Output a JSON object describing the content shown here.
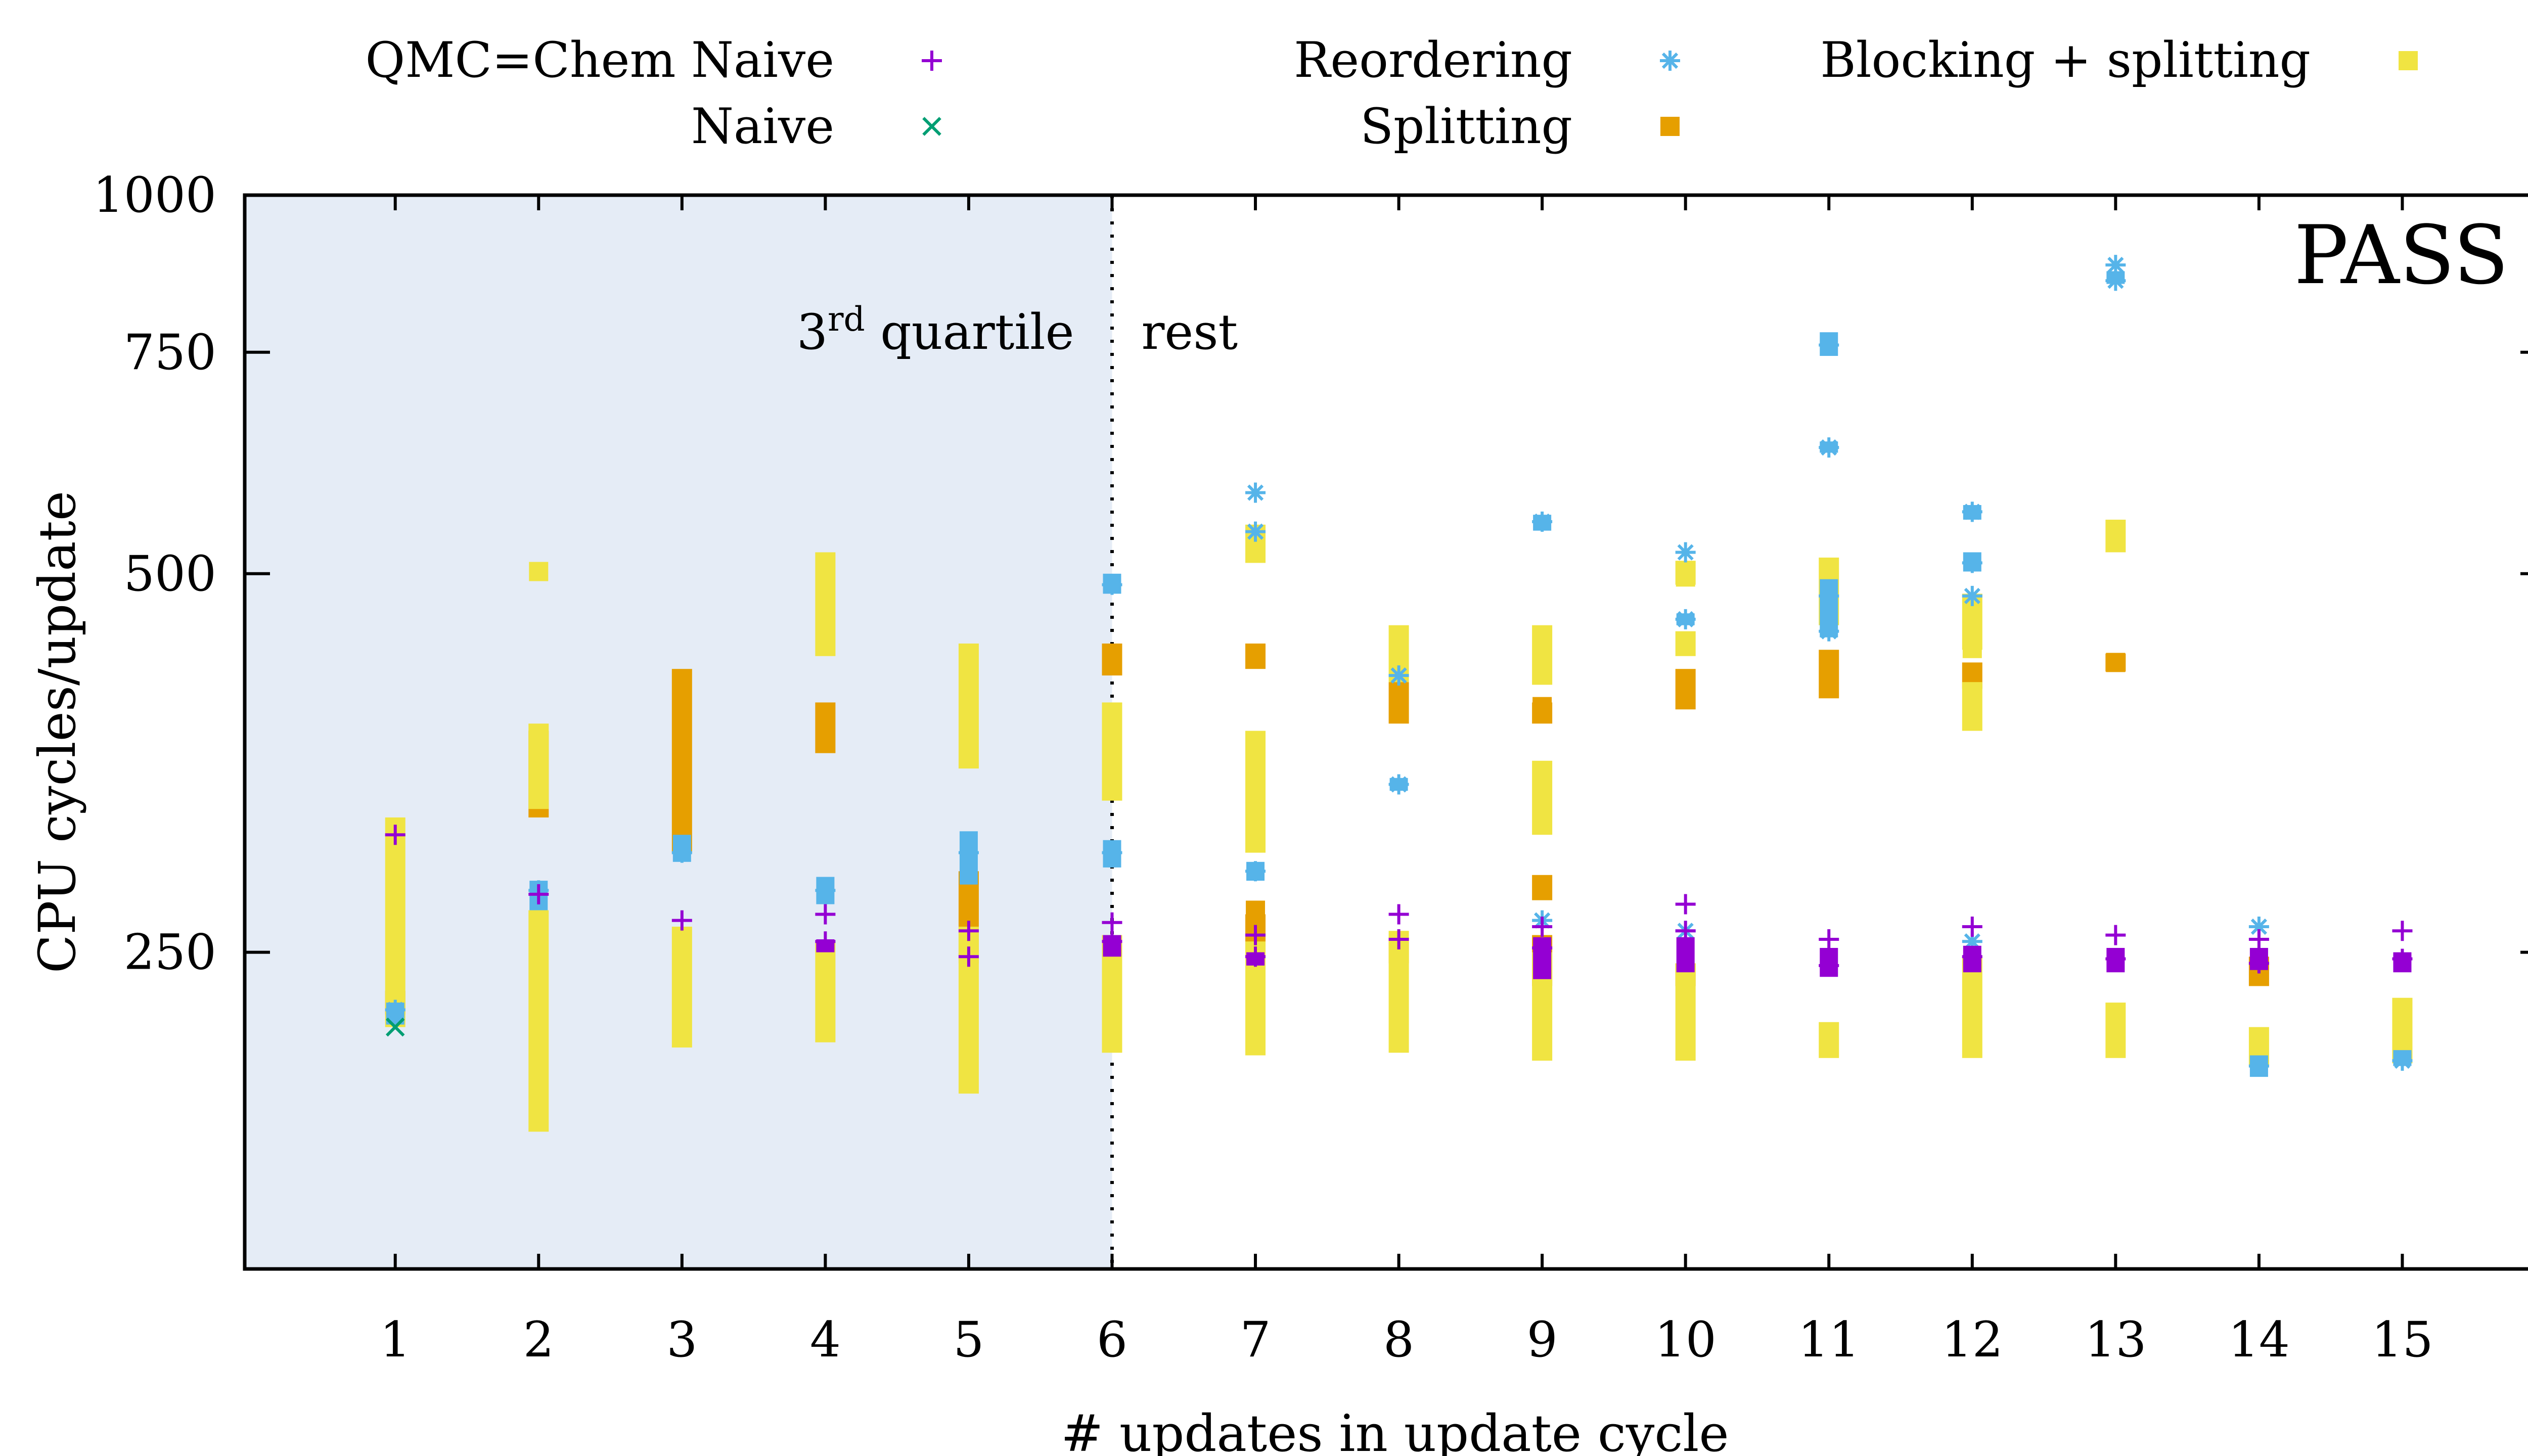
{
  "chart_data": {
    "type": "scatter",
    "title": "",
    "panel_label": "PASS",
    "xlabel": "# updates in update cycle",
    "ylabel": "CPU cycles/update",
    "y_scale": "log",
    "ylim": [
      140,
      1000
    ],
    "xlim": [
      -0.05,
      16
    ],
    "x_ticks": [
      "1",
      "2",
      "3",
      "4",
      "5",
      "6",
      "7",
      "8",
      "9",
      "10",
      "11",
      "12",
      "13",
      "14",
      "15"
    ],
    "y_ticks": [
      "250",
      "500",
      "750",
      "1000"
    ],
    "legend_position": "top, outside plot",
    "region": {
      "x_from": -0.05,
      "x_to": 6,
      "left_label_main": "3",
      "left_label_sup": "rd",
      "left_label_rest": " quartile",
      "right_label": "rest",
      "fill": "#e5ecf6"
    },
    "series": [
      {
        "name": "QMC=Chem Naive",
        "marker": "plus",
        "color": "#9400d3",
        "points": [
          [
            1,
            310
          ],
          [
            2,
            278
          ],
          [
            3,
            265
          ],
          [
            4,
            268
          ],
          [
            4,
            255
          ],
          [
            5,
            260
          ],
          [
            5,
            248
          ],
          [
            6,
            264
          ],
          [
            6,
            255
          ],
          [
            7,
            258
          ],
          [
            7,
            248
          ],
          [
            8,
            268
          ],
          [
            8,
            256
          ],
          [
            9,
            262
          ],
          [
            9,
            252
          ],
          [
            10,
            273
          ],
          [
            10,
            260
          ],
          [
            11,
            256
          ],
          [
            11,
            244
          ],
          [
            12,
            262
          ],
          [
            12,
            248
          ],
          [
            13,
            258
          ],
          [
            13,
            247
          ],
          [
            14,
            256
          ],
          [
            14,
            245
          ],
          [
            15,
            260
          ],
          [
            15,
            247
          ]
        ],
        "bands": [
          [
            4,
            250,
            256
          ],
          [
            6,
            248,
            258
          ],
          [
            7,
            244,
            250
          ],
          [
            9,
            238,
            257
          ],
          [
            10,
            241,
            257
          ],
          [
            11,
            239,
            252
          ],
          [
            12,
            241,
            253
          ],
          [
            13,
            241,
            252
          ],
          [
            14,
            242,
            252
          ],
          [
            15,
            241,
            250
          ]
        ]
      },
      {
        "name": "Naive",
        "marker": "cross",
        "color": "#009e73",
        "points": [
          [
            1,
            218
          ]
        ],
        "bands": []
      },
      {
        "name": "Reordering",
        "marker": "star",
        "color": "#56b4e9",
        "points": [
          [
            1,
            225
          ],
          [
            2,
            280
          ],
          [
            3,
            300
          ],
          [
            4,
            280
          ],
          [
            5,
            300
          ],
          [
            6,
            490
          ],
          [
            6,
            300
          ],
          [
            7,
            580
          ],
          [
            7,
            540
          ],
          [
            7,
            290
          ],
          [
            8,
            415
          ],
          [
            8,
            340
          ],
          [
            9,
            550
          ],
          [
            9,
            265
          ],
          [
            10,
            520
          ],
          [
            10,
            460
          ],
          [
            10,
            260
          ],
          [
            11,
            760
          ],
          [
            11,
            630
          ],
          [
            11,
            480
          ],
          [
            11,
            450
          ],
          [
            12,
            560
          ],
          [
            12,
            510
          ],
          [
            12,
            480
          ],
          [
            12,
            255
          ],
          [
            13,
            880
          ],
          [
            13,
            855
          ],
          [
            14,
            262
          ],
          [
            14,
            203
          ],
          [
            15,
            205
          ]
        ],
        "bands": [
          [
            1,
            219,
            228
          ],
          [
            2,
            270,
            285
          ],
          [
            3,
            295,
            310
          ],
          [
            4,
            273,
            287
          ],
          [
            5,
            283,
            312
          ],
          [
            6,
            482,
            500
          ],
          [
            6,
            292,
            307
          ],
          [
            7,
            285,
            295
          ],
          [
            8,
            336,
            344
          ],
          [
            9,
            541,
            557
          ],
          [
            10,
            455,
            465
          ],
          [
            11,
            745,
            778
          ],
          [
            11,
            624,
            637
          ],
          [
            11,
            445,
            495
          ],
          [
            12,
            552,
            567
          ],
          [
            12,
            502,
            520
          ],
          [
            13,
            850,
            870
          ],
          [
            14,
            199,
            207
          ],
          [
            15,
            203,
            209
          ]
        ]
      },
      {
        "name": "Splitting",
        "marker": "square",
        "color": "#e69f00",
        "points": [
          [
            1,
            228
          ],
          [
            2,
            370
          ],
          [
            3,
            240
          ],
          [
            4,
            250
          ],
          [
            5,
            250
          ],
          [
            6,
            245
          ],
          [
            7,
            270
          ],
          [
            8,
            395
          ],
          [
            9,
            392
          ],
          [
            10,
            404
          ],
          [
            11,
            412
          ],
          [
            12,
            412
          ],
          [
            13,
            425
          ],
          [
            14,
            242
          ]
        ],
        "bands": [
          [
            1,
            223,
            233
          ],
          [
            2,
            320,
            375
          ],
          [
            3,
            300,
            420
          ],
          [
            4,
            360,
            395
          ],
          [
            5,
            245,
            290
          ],
          [
            6,
            415,
            440
          ],
          [
            7,
            250,
            268
          ],
          [
            7,
            420,
            440
          ],
          [
            8,
            245,
            257
          ],
          [
            8,
            380,
            410
          ],
          [
            9,
            235,
            258
          ],
          [
            9,
            275,
            288
          ],
          [
            9,
            380,
            395
          ],
          [
            10,
            235,
            245
          ],
          [
            10,
            390,
            420
          ],
          [
            11,
            398,
            435
          ],
          [
            12,
            405,
            425
          ],
          [
            13,
            418,
            432
          ],
          [
            14,
            235,
            248
          ]
        ]
      },
      {
        "name": "Blocking + splitting",
        "marker": "square",
        "color": "#f0e442",
        "points": [
          [
            2,
            502
          ],
          [
            7,
            527
          ],
          [
            10,
            497
          ],
          [
            12,
            436
          ],
          [
            13,
            535
          ]
        ],
        "bands": [
          [
            1,
            218,
            320
          ],
          [
            2,
            180,
            270
          ],
          [
            2,
            325,
            380
          ],
          [
            3,
            210,
            262
          ],
          [
            4,
            212,
            255
          ],
          [
            4,
            430,
            520
          ],
          [
            5,
            193,
            262
          ],
          [
            5,
            350,
            440
          ],
          [
            6,
            208,
            258
          ],
          [
            6,
            330,
            395
          ],
          [
            7,
            207,
            255
          ],
          [
            7,
            300,
            375
          ],
          [
            7,
            510,
            547
          ],
          [
            8,
            208,
            260
          ],
          [
            8,
            410,
            455
          ],
          [
            9,
            205,
            250
          ],
          [
            9,
            310,
            355
          ],
          [
            9,
            408,
            455
          ],
          [
            10,
            205,
            245
          ],
          [
            10,
            430,
            450
          ],
          [
            10,
            490,
            512
          ],
          [
            11,
            206,
            220
          ],
          [
            11,
            455,
            515
          ],
          [
            12,
            206,
            248
          ],
          [
            12,
            375,
            410
          ],
          [
            12,
            435,
            482
          ],
          [
            13,
            206,
            228
          ],
          [
            13,
            520,
            552
          ],
          [
            14,
            203,
            218
          ],
          [
            15,
            204,
            230
          ]
        ]
      }
    ]
  }
}
